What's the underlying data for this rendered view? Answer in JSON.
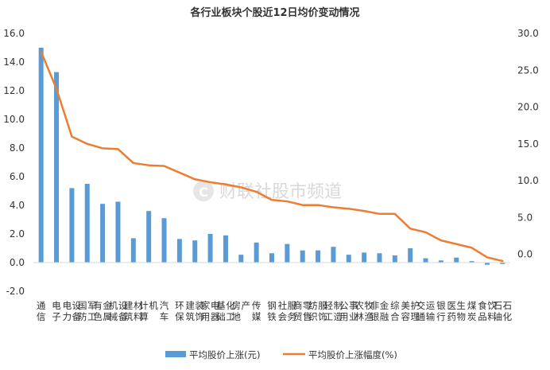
{
  "chart_data": {
    "type": "bar+line",
    "title": "各行业板块个股近12日均价变动情况",
    "categories": [
      "通信",
      "电子",
      "电力设备",
      "国防军工",
      "有色金属",
      "机械设备",
      "建筑材料",
      "计算机",
      "汽车",
      "环保",
      "建筑装饰",
      "家用电器",
      "基础化工",
      "房地产",
      "传媒",
      "钢铁",
      "社会服务",
      "商贸零售",
      "纺织服饰",
      "轻工制造",
      "公用事业",
      "农林牧渔",
      "非银金融",
      "综合",
      "美容护理",
      "交通运输",
      "银行",
      "医药生物",
      "煤炭",
      "食品饮料",
      "石油石化"
    ],
    "series": [
      {
        "name": "平均股价上涨(元)",
        "type": "bar",
        "axis": "left",
        "color": "#5B9BD5",
        "values": [
          15.0,
          13.3,
          5.2,
          5.5,
          4.1,
          4.25,
          1.7,
          3.6,
          3.1,
          1.65,
          1.55,
          2.0,
          1.9,
          0.55,
          1.4,
          0.65,
          1.3,
          0.85,
          0.85,
          1.1,
          0.55,
          0.7,
          0.65,
          0.5,
          1.0,
          0.3,
          0.15,
          0.35,
          0.1,
          -0.15,
          -0.1
        ]
      },
      {
        "name": "平均股价上涨幅度(%)",
        "type": "line",
        "axis": "right",
        "color": "#ED7D31",
        "values": [
          27.5,
          22.5,
          16.0,
          15.0,
          14.4,
          14.3,
          12.4,
          12.1,
          12.0,
          11.1,
          10.2,
          9.8,
          9.5,
          9.1,
          8.5,
          7.4,
          7.2,
          6.7,
          6.7,
          6.4,
          6.2,
          5.9,
          5.5,
          5.5,
          3.5,
          3.0,
          1.9,
          1.4,
          0.9,
          -0.4,
          -0.9
        ]
      }
    ],
    "y_left": {
      "min": -2.0,
      "max": 16.0,
      "step": 2.0,
      "ticks": [
        "-2.0",
        "0.0",
        "2.0",
        "4.0",
        "6.0",
        "8.0",
        "10.0",
        "12.0",
        "14.0",
        "16.0"
      ]
    },
    "y_right": {
      "min": -5.0,
      "max": 30.0,
      "step": 5.0,
      "ticks": [
        "",
        "0.0",
        "5.0",
        "10.0",
        "15.0",
        "20.0",
        "25.0",
        "30.0"
      ]
    },
    "grid": false,
    "legend_position": "bottom"
  },
  "watermark": {
    "text": "财联社股市频道",
    "logo_letter": "C"
  }
}
